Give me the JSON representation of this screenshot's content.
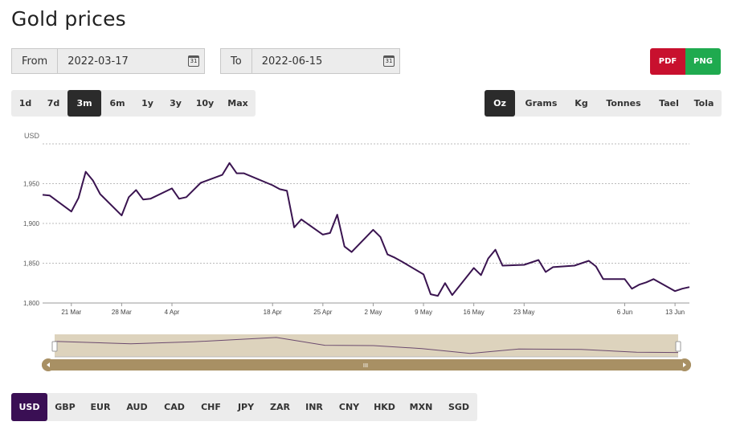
{
  "page": {
    "title": "Gold prices"
  },
  "range": {
    "from_label": "From",
    "from_value": "2022-03-17",
    "to_label": "To",
    "to_value": "2022-06-15",
    "calendar_glyph": "31"
  },
  "export": {
    "pdf": "PDF",
    "png": "PNG"
  },
  "periods": {
    "items": [
      "1d",
      "7d",
      "3m",
      "6m",
      "1y",
      "3y",
      "10y",
      "Max"
    ],
    "active": "3m"
  },
  "units": {
    "items": [
      "Oz",
      "Grams",
      "Kg",
      "Tonnes",
      "Tael",
      "Tola"
    ],
    "active": "Oz"
  },
  "currencies": {
    "items": [
      "USD",
      "GBP",
      "EUR",
      "AUD",
      "CAD",
      "CHF",
      "JPY",
      "ZAR",
      "INR",
      "CNY",
      "HKD",
      "MXN",
      "SGD"
    ],
    "active": "USD"
  },
  "navigator": {
    "handle_glyph": "III"
  },
  "colors": {
    "line": "#3a1450",
    "active_currency": "#3a0f54",
    "active_button": "#2b2b2b",
    "pdf": "#c8102e",
    "png": "#1faa4f",
    "navigator_fill": "#ddd3bd",
    "scrollbar": "#a89064"
  },
  "chart_data": {
    "type": "line",
    "ylabel": "USD",
    "ylim": [
      1800,
      2000
    ],
    "yticks": [
      1800,
      1850,
      1900,
      1950
    ],
    "ytick_labels": [
      "1,800",
      "1,850",
      "1,900",
      "1,950"
    ],
    "xlim": [
      "2022-03-17",
      "2022-06-15"
    ],
    "xticks": [
      {
        "date": "2022-03-21",
        "label": "21 Mar"
      },
      {
        "date": "2022-03-28",
        "label": "28 Mar"
      },
      {
        "date": "2022-04-04",
        "label": "4 Apr"
      },
      {
        "date": "2022-04-18",
        "label": "18 Apr"
      },
      {
        "date": "2022-04-25",
        "label": "25 Apr"
      },
      {
        "date": "2022-05-02",
        "label": "2 May"
      },
      {
        "date": "2022-05-09",
        "label": "9 May"
      },
      {
        "date": "2022-05-16",
        "label": "16 May"
      },
      {
        "date": "2022-05-23",
        "label": "23 May"
      },
      {
        "date": "2022-06-06",
        "label": "6 Jun"
      },
      {
        "date": "2022-06-13",
        "label": "13 Jun"
      }
    ],
    "grid": true,
    "series": [
      {
        "x": [
          "2022-03-17",
          "2022-03-18",
          "2022-03-21",
          "2022-03-22",
          "2022-03-23",
          "2022-03-24",
          "2022-03-25",
          "2022-03-28",
          "2022-03-29",
          "2022-03-30",
          "2022-03-31",
          "2022-04-01",
          "2022-04-04",
          "2022-04-05",
          "2022-04-06",
          "2022-04-07",
          "2022-04-08",
          "2022-04-11",
          "2022-04-12",
          "2022-04-13",
          "2022-04-14",
          "2022-04-18",
          "2022-04-19",
          "2022-04-20",
          "2022-04-21",
          "2022-04-22",
          "2022-04-25",
          "2022-04-26",
          "2022-04-27",
          "2022-04-28",
          "2022-04-29",
          "2022-05-02",
          "2022-05-03",
          "2022-05-04",
          "2022-05-05",
          "2022-05-06",
          "2022-05-09",
          "2022-05-10",
          "2022-05-11",
          "2022-05-12",
          "2022-05-13",
          "2022-05-16",
          "2022-05-17",
          "2022-05-18",
          "2022-05-19",
          "2022-05-20",
          "2022-05-23",
          "2022-05-24",
          "2022-05-25",
          "2022-05-26",
          "2022-05-27",
          "2022-05-30",
          "2022-05-31",
          "2022-06-01",
          "2022-06-02",
          "2022-06-03",
          "2022-06-06",
          "2022-06-07",
          "2022-06-08",
          "2022-06-09",
          "2022-06-10",
          "2022-06-13",
          "2022-06-14",
          "2022-06-15"
        ],
        "y": [
          1936,
          1935,
          1915,
          1932,
          1965,
          1954,
          1937,
          1910,
          1933,
          1942,
          1930,
          1931,
          1944,
          1931,
          1933,
          1942,
          1951,
          1961,
          1976,
          1963,
          1963,
          1948,
          1943,
          1941,
          1895,
          1905,
          1886,
          1888,
          1911,
          1871,
          1864,
          1892,
          1883,
          1861,
          1857,
          1852,
          1836,
          1811,
          1809,
          1825,
          1810,
          1844,
          1835,
          1856,
          1867,
          1847,
          1848,
          1851,
          1854,
          1839,
          1845,
          1847,
          1850,
          1853,
          1846,
          1830,
          1830,
          1818,
          1823,
          1826,
          1830,
          1815,
          1818,
          1820
        ]
      }
    ],
    "navigator": {
      "x": [
        "2022-03-17",
        "2022-03-28",
        "2022-04-06",
        "2022-04-18",
        "2022-04-25",
        "2022-05-02",
        "2022-05-09",
        "2022-05-16",
        "2022-05-23",
        "2022-06-01",
        "2022-06-09",
        "2022-06-15"
      ],
      "y": [
        1936,
        1910,
        1931,
        1976,
        1895,
        1892,
        1861,
        1811,
        1856,
        1852,
        1823,
        1820
      ]
    }
  }
}
